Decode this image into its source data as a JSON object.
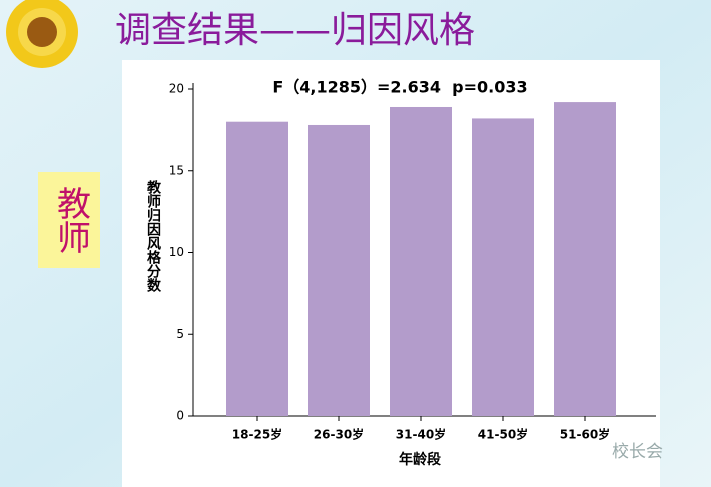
{
  "slide_title": "调查结果——归因风格",
  "side_label": "教师",
  "watermark": "校长会",
  "chart_data": {
    "type": "bar",
    "annotation": "F（4,1285）=2.634  p=0.033",
    "y_label": "教师归因风格分数",
    "x_label": "年龄段",
    "categories": [
      "18-25岁",
      "26-30岁",
      "31-40岁",
      "41-50岁",
      "51-60岁"
    ],
    "values": [
      18.0,
      17.8,
      18.9,
      18.2,
      19.2
    ],
    "color": "#b39ccb",
    "ylim": [
      0,
      20
    ],
    "yticks": [
      0,
      5,
      10,
      15,
      20
    ]
  }
}
